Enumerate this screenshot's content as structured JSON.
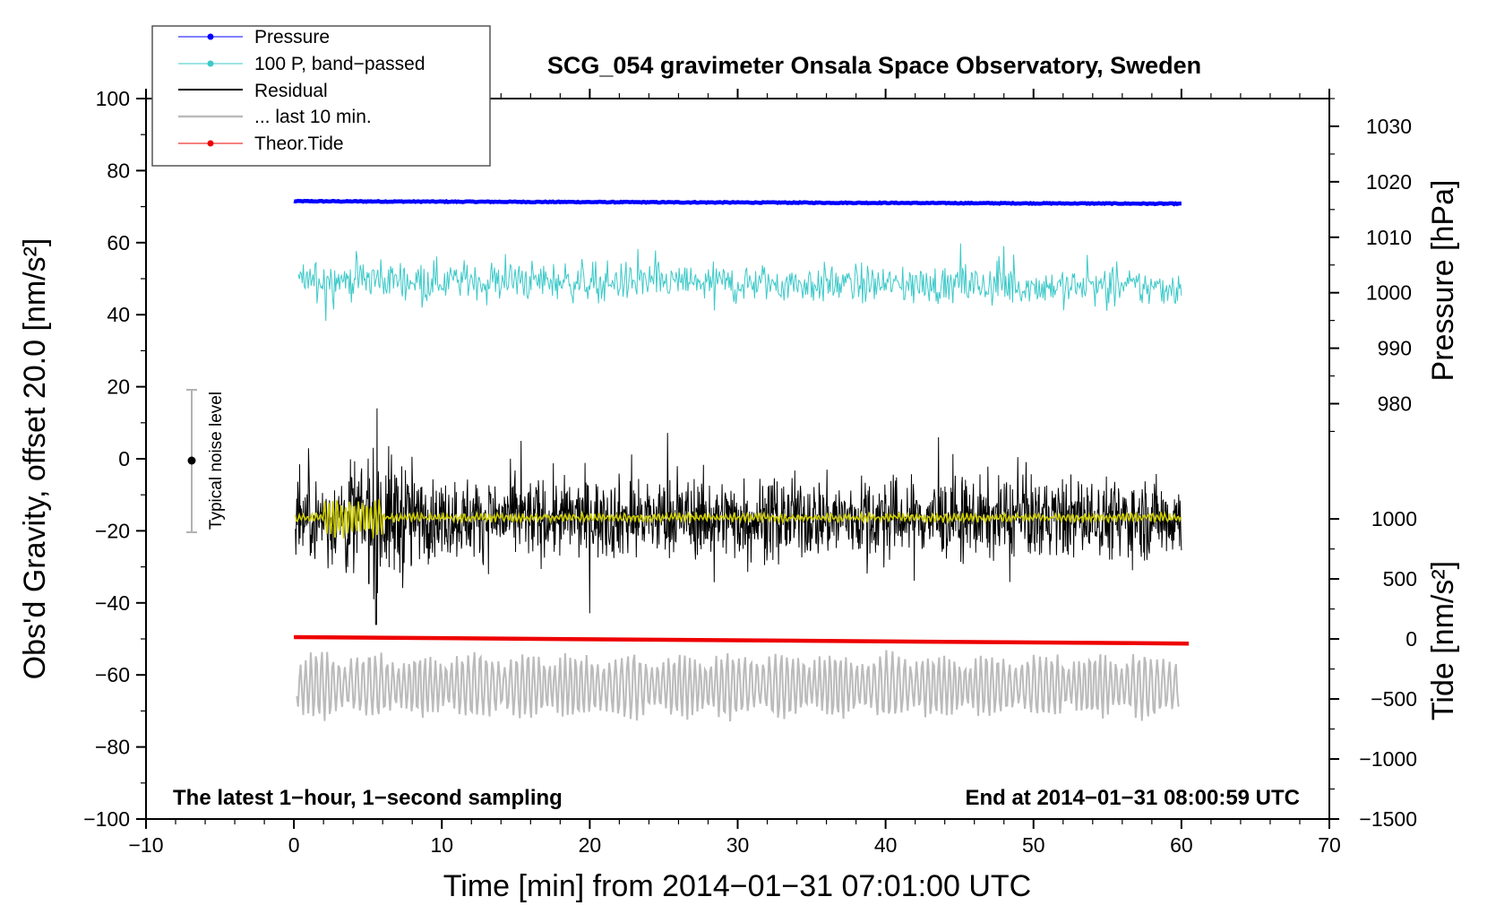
{
  "chart_data": {
    "type": "line",
    "title": "SCG_054 gravimeter Onsala Space Observatory, Sweden",
    "xlabel": "Time [min] from 2014−01−31 07:01:00 UTC",
    "ylabel_main": "Obs'd Gravity, offset 20.0 [nm/s²]",
    "ylabel_pressure": "Pressure [hPa]",
    "ylabel_tide": "Tide [nm/s²]",
    "xlim": [
      -10,
      70
    ],
    "ylim": [
      -100,
      100
    ],
    "x_ticks": [
      "−10",
      "0",
      "10",
      "20",
      "30",
      "40",
      "50",
      "60",
      "70"
    ],
    "y_ticks": [
      "−100",
      "−80",
      "−60",
      "−40",
      "−20",
      "0",
      "20",
      "40",
      "60",
      "80",
      "100"
    ],
    "pressure_axis": {
      "range_hpa_at_main": [
        [
          1030,
          92.3
        ],
        [
          980,
          15.3
        ]
      ],
      "ticks": [
        "980",
        "990",
        "1000",
        "1010",
        "1020",
        "1030"
      ]
    },
    "tide_axis": {
      "range_at_main": [
        [
          1000,
          -16.7
        ],
        [
          -1500,
          -100
        ]
      ],
      "ticks": [
        "−1500",
        "−1000",
        "−500",
        "0",
        "500",
        "1000"
      ]
    },
    "series": [
      {
        "name": "Pressure",
        "color": "#0000ff",
        "kind": "line",
        "start": [
          0,
          71.5
        ],
        "end": [
          60,
          70.8
        ],
        "noise": 0.25
      },
      {
        "name": "100 P, band−passed",
        "color": "#3dc9c9",
        "kind": "noise",
        "center": 50,
        "center_end": 47.5,
        "amplitude": 6,
        "spikes": 13
      },
      {
        "name": "Residual",
        "color": "#000000",
        "kind": "noise",
        "center": -16.5,
        "amplitude": 10,
        "spikes": 30
      },
      {
        "name": "... last 10 min.",
        "color": "#bbbbbb",
        "kind": "oscillation",
        "center": -63,
        "amplitude": 7
      },
      {
        "name": "Theor.Tide",
        "color": "#ee0000",
        "kind": "line",
        "start": [
          0,
          -49.5
        ],
        "end": [
          60.5,
          -51.3
        ],
        "noise": 0
      }
    ],
    "smoothed_residual": {
      "color": "#cccc00",
      "center": -16.3
    },
    "noise_level": {
      "label": "Typical noise level",
      "x": -7,
      "center": 0,
      "low": -20,
      "high": 20
    },
    "annotations": {
      "bottom_left": "The latest 1−hour, 1−second sampling",
      "bottom_right": "End at 2014−01−31 08:00:59 UTC"
    },
    "legend": [
      "Pressure",
      "100 P, band−passed",
      "Residual",
      "... last 10 min.",
      "Theor.Tide"
    ]
  }
}
